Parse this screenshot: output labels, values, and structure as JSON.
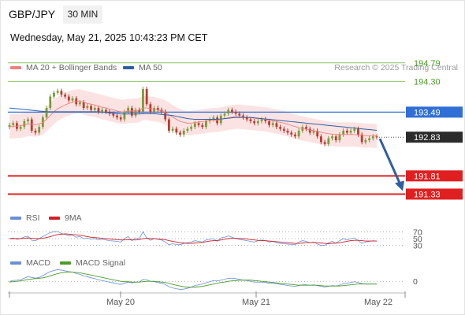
{
  "header": {
    "symbol": "GBP/JPY",
    "timeframe": "30 MIN",
    "datetime": "Wednesday, May 21, 2025 10:43:23 PM CET"
  },
  "legend": {
    "ma20_label": "MA 20 + Bollinger Bands",
    "ma50_label": "MA 50",
    "credit": "Research © 2025 Trading Central",
    "rsi_label": "RSI",
    "rsi_ma_label": "9MA",
    "macd_label": "MACD",
    "macd_signal_label": "MACD Signal"
  },
  "colors": {
    "ma20": "#f08080",
    "ma50": "#2f5fa3",
    "bollinger_fill": "#fbe3e3",
    "candle_up": "#7a9a3a",
    "candle_down": "#c0392b",
    "resistance": "#8fc46a",
    "pivot": "#2f6fd6",
    "support": "#e02020",
    "arrow": "#2f5fa3",
    "rsi": "#6a8fd8",
    "rsi_ma": "#d0202a",
    "macd": "#6a8fd8",
    "macd_signal": "#4c9a2a"
  },
  "chart_data": {
    "type": "candlestick",
    "price_range": [
      190.8,
      195.2
    ],
    "x_labels": [
      "May 20",
      "May 21",
      "May 22"
    ],
    "levels": [
      {
        "value": 194.79,
        "label": "194.79",
        "kind": "resistance"
      },
      {
        "value": 194.3,
        "label": "194.30",
        "kind": "resistance"
      },
      {
        "value": 193.49,
        "label": "193.49",
        "kind": "pivot"
      },
      {
        "value": 191.81,
        "label": "191.81",
        "kind": "support"
      },
      {
        "value": 191.33,
        "label": "191.33",
        "kind": "support"
      }
    ],
    "last_price": {
      "value": 192.83,
      "label": "192.83"
    },
    "target_arrow": {
      "from": 192.83,
      "to": 191.33
    },
    "close": [
      193.15,
      193.2,
      193.05,
      193.1,
      193.25,
      193.3,
      193.0,
      192.95,
      193.1,
      193.35,
      193.6,
      193.9,
      194.0,
      194.05,
      193.95,
      193.9,
      193.8,
      193.85,
      193.7,
      193.75,
      193.6,
      193.65,
      193.55,
      193.6,
      193.5,
      193.55,
      193.5,
      193.45,
      193.4,
      193.35,
      193.3,
      193.5,
      193.6,
      193.4,
      193.55,
      193.5,
      194.1,
      193.7,
      193.5,
      193.6,
      193.55,
      193.5,
      193.3,
      193.0,
      193.05,
      192.95,
      192.9,
      193.0,
      193.05,
      193.1,
      193.2,
      193.15,
      193.1,
      193.25,
      193.3,
      193.35,
      193.2,
      193.4,
      193.45,
      193.55,
      193.5,
      193.45,
      193.4,
      193.35,
      193.3,
      193.25,
      193.2,
      193.25,
      193.3,
      193.25,
      193.15,
      193.2,
      193.1,
      193.05,
      193.0,
      192.95,
      192.9,
      192.85,
      193.0,
      193.1,
      193.05,
      192.95,
      193.0,
      192.85,
      192.7,
      192.65,
      192.8,
      192.85,
      192.75,
      192.9,
      193.0,
      192.95,
      193.0,
      193.05,
      192.9,
      192.7,
      192.75,
      192.8,
      192.85,
      192.83
    ],
    "ma20": [
      193.1,
      193.12,
      193.12,
      193.13,
      193.15,
      193.18,
      193.17,
      193.16,
      193.18,
      193.22,
      193.3,
      193.4,
      193.5,
      193.58,
      193.63,
      193.68,
      193.72,
      193.75,
      193.77,
      193.78,
      193.75,
      193.72,
      193.7,
      193.68,
      193.65,
      193.62,
      193.6,
      193.57,
      193.55,
      193.52,
      193.5,
      193.5,
      193.52,
      193.52,
      193.53,
      193.54,
      193.6,
      193.6,
      193.58,
      193.57,
      193.55,
      193.52,
      193.48,
      193.42,
      193.36,
      193.3,
      193.25,
      193.22,
      193.2,
      193.2,
      193.22,
      193.23,
      193.24,
      193.26,
      193.27,
      193.28,
      193.28,
      193.3,
      193.32,
      193.34,
      193.36,
      193.37,
      193.37,
      193.36,
      193.35,
      193.34,
      193.33,
      193.32,
      193.31,
      193.3,
      193.28,
      193.26,
      193.24,
      193.22,
      193.2,
      193.17,
      193.14,
      193.11,
      193.08,
      193.06,
      193.04,
      193.02,
      193.0,
      192.98,
      192.96,
      192.94,
      192.92,
      192.91,
      192.9,
      192.9,
      192.9,
      192.9,
      192.9,
      192.9,
      192.89,
      192.88,
      192.87,
      192.87,
      192.87,
      192.86
    ],
    "ma50": [
      193.6,
      193.59,
      193.58,
      193.57,
      193.56,
      193.55,
      193.54,
      193.53,
      193.52,
      193.51,
      193.5,
      193.5,
      193.5,
      193.5,
      193.5,
      193.5,
      193.5,
      193.5,
      193.5,
      193.5,
      193.5,
      193.5,
      193.5,
      193.5,
      193.5,
      193.49,
      193.48,
      193.47,
      193.46,
      193.45,
      193.44,
      193.44,
      193.44,
      193.44,
      193.44,
      193.44,
      193.45,
      193.45,
      193.45,
      193.45,
      193.44,
      193.43,
      193.42,
      193.41,
      193.4,
      193.38,
      193.36,
      193.34,
      193.32,
      193.31,
      193.3,
      193.3,
      193.3,
      193.3,
      193.3,
      193.3,
      193.3,
      193.31,
      193.32,
      193.33,
      193.34,
      193.35,
      193.35,
      193.35,
      193.35,
      193.35,
      193.34,
      193.33,
      193.32,
      193.31,
      193.3,
      193.29,
      193.28,
      193.27,
      193.26,
      193.25,
      193.24,
      193.23,
      193.22,
      193.21,
      193.2,
      193.19,
      193.18,
      193.17,
      193.16,
      193.15,
      193.14,
      193.13,
      193.12,
      193.11,
      193.1,
      193.09,
      193.08,
      193.07,
      193.06,
      193.05,
      193.04,
      193.03,
      193.02,
      193.01
    ],
    "rsi_axis": [
      {
        "value": 70,
        "label": "70"
      },
      {
        "value": 50,
        "label": "50"
      },
      {
        "value": 30,
        "label": "30"
      }
    ],
    "rsi": [
      50,
      52,
      48,
      50,
      55,
      57,
      45,
      44,
      50,
      56,
      62,
      68,
      70,
      71,
      65,
      62,
      58,
      60,
      54,
      56,
      50,
      52,
      48,
      50,
      46,
      48,
      46,
      44,
      43,
      42,
      40,
      50,
      56,
      44,
      52,
      50,
      70,
      52,
      45,
      50,
      48,
      46,
      40,
      32,
      35,
      33,
      32,
      36,
      38,
      40,
      44,
      42,
      40,
      46,
      48,
      50,
      42,
      52,
      54,
      58,
      54,
      50,
      48,
      46,
      44,
      42,
      40,
      44,
      46,
      44,
      40,
      42,
      38,
      36,
      35,
      34,
      33,
      32,
      40,
      44,
      42,
      38,
      40,
      34,
      30,
      30,
      38,
      42,
      36,
      44,
      50,
      46,
      50,
      52,
      44,
      36,
      40,
      42,
      44,
      43
    ],
    "rsi_ma": [
      50,
      50,
      50,
      50,
      51,
      52,
      51,
      50,
      50,
      51,
      53,
      56,
      59,
      62,
      63,
      64,
      63,
      62,
      61,
      60,
      58,
      56,
      54,
      53,
      52,
      51,
      50,
      49,
      48,
      47,
      46,
      46,
      47,
      46,
      46,
      47,
      50,
      51,
      50,
      50,
      49,
      48,
      47,
      44,
      42,
      40,
      38,
      37,
      36,
      36,
      37,
      38,
      39,
      41,
      43,
      44,
      44,
      46,
      48,
      50,
      51,
      51,
      50,
      50,
      49,
      47,
      46,
      45,
      44,
      44,
      43,
      42,
      41,
      40,
      39,
      38,
      37,
      36,
      36,
      37,
      38,
      38,
      39,
      38,
      37,
      36,
      35,
      36,
      37,
      38,
      40,
      42,
      44,
      45,
      45,
      44,
      43,
      43,
      43,
      43
    ],
    "macd_axis": [
      {
        "value": 0,
        "label": "0"
      }
    ],
    "macd": [
      0.0,
      0.02,
      0.03,
      0.04,
      0.08,
      0.12,
      0.1,
      0.08,
      0.1,
      0.15,
      0.2,
      0.25,
      0.28,
      0.3,
      0.29,
      0.27,
      0.25,
      0.24,
      0.2,
      0.18,
      0.14,
      0.12,
      0.09,
      0.07,
      0.04,
      0.02,
      0.0,
      -0.02,
      -0.04,
      -0.06,
      -0.08,
      -0.05,
      -0.02,
      -0.04,
      -0.02,
      -0.02,
      0.05,
      0.04,
      0.0,
      -0.01,
      -0.03,
      -0.05,
      -0.08,
      -0.14,
      -0.17,
      -0.19,
      -0.21,
      -0.2,
      -0.18,
      -0.15,
      -0.11,
      -0.09,
      -0.07,
      -0.04,
      -0.01,
      0.02,
      0.01,
      0.03,
      0.05,
      0.08,
      0.08,
      0.07,
      0.05,
      0.03,
      0.02,
      0.0,
      -0.02,
      -0.02,
      -0.02,
      -0.03,
      -0.05,
      -0.05,
      -0.06,
      -0.08,
      -0.09,
      -0.11,
      -0.12,
      -0.13,
      -0.11,
      -0.09,
      -0.09,
      -0.1,
      -0.09,
      -0.11,
      -0.13,
      -0.15,
      -0.13,
      -0.11,
      -0.12,
      -0.1,
      -0.06,
      -0.05,
      -0.03,
      -0.01,
      -0.03,
      -0.06,
      -0.07,
      -0.07,
      -0.07,
      -0.07
    ],
    "macd_signal": [
      -0.02,
      -0.01,
      0.0,
      0.01,
      0.03,
      0.05,
      0.06,
      0.07,
      0.08,
      0.09,
      0.11,
      0.14,
      0.17,
      0.2,
      0.22,
      0.23,
      0.24,
      0.24,
      0.23,
      0.22,
      0.2,
      0.18,
      0.16,
      0.14,
      0.12,
      0.1,
      0.08,
      0.06,
      0.04,
      0.02,
      0.0,
      -0.01,
      -0.01,
      -0.02,
      -0.02,
      -0.02,
      -0.01,
      0.0,
      0.0,
      0.0,
      -0.01,
      -0.02,
      -0.03,
      -0.05,
      -0.08,
      -0.1,
      -0.12,
      -0.14,
      -0.15,
      -0.15,
      -0.15,
      -0.14,
      -0.13,
      -0.11,
      -0.09,
      -0.07,
      -0.05,
      -0.03,
      -0.02,
      0.0,
      0.01,
      0.02,
      0.03,
      0.03,
      0.03,
      0.03,
      0.02,
      0.01,
      0.0,
      -0.01,
      -0.02,
      -0.03,
      -0.04,
      -0.05,
      -0.06,
      -0.07,
      -0.08,
      -0.09,
      -0.1,
      -0.1,
      -0.1,
      -0.1,
      -0.1,
      -0.1,
      -0.11,
      -0.12,
      -0.12,
      -0.12,
      -0.12,
      -0.12,
      -0.11,
      -0.1,
      -0.09,
      -0.08,
      -0.07,
      -0.07,
      -0.07,
      -0.07,
      -0.07,
      -0.07
    ]
  }
}
